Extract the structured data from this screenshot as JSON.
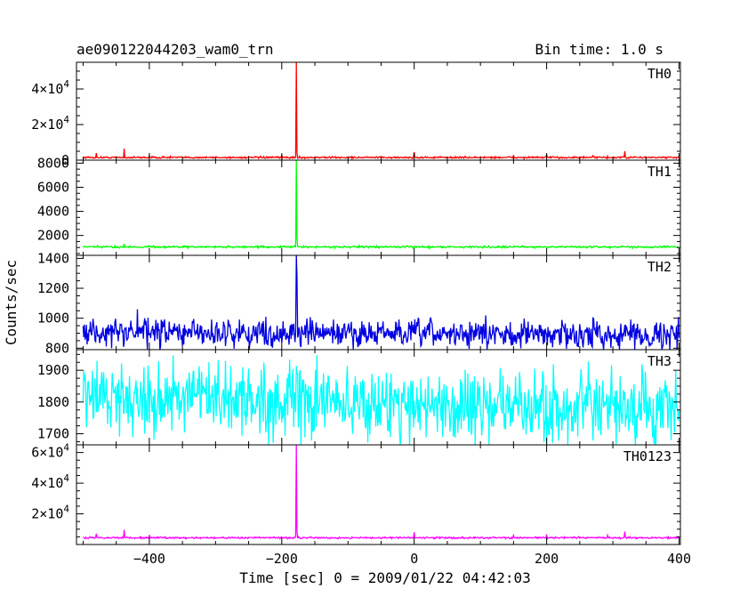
{
  "chart_data": {
    "type": "line",
    "title_left": "ae090122044203_wam0_trn",
    "title_right": "Bin time: 1.0 s",
    "xlabel": "Time [sec] 0 = 2009/01/22 04:42:03",
    "ylabel": "Counts/sec",
    "xlim": [
      -510,
      402
    ],
    "x_ticks": [
      -400,
      -200,
      0,
      200,
      400
    ],
    "x_tick_labels": [
      "−400",
      "−200",
      "0",
      "200",
      "400"
    ],
    "x_range": [
      -500,
      400
    ],
    "burst_time": -178,
    "panels": [
      {
        "name": "TH0",
        "color": "#ff0000",
        "ylim": [
          0,
          55000
        ],
        "yticks": [
          0,
          20000,
          40000
        ],
        "ytick_labels": [
          {
            "mant": "0",
            "exp": ""
          },
          {
            "mant": "2×10",
            "exp": "4"
          },
          {
            "mant": "4×10",
            "exp": "4"
          }
        ],
        "baseline": 1500,
        "noise_amp": 250,
        "trend": 0,
        "peak": 55000,
        "spikes": [
          [
            -480,
            4000
          ],
          [
            -438,
            6500
          ],
          [
            -400,
            2500
          ],
          [
            -368,
            2200
          ],
          [
            -200,
            3000
          ],
          [
            0,
            4500
          ],
          [
            62,
            2000
          ],
          [
            150,
            2500
          ],
          [
            200,
            3000
          ],
          [
            270,
            2500
          ],
          [
            292,
            2200
          ],
          [
            318,
            5000
          ]
        ]
      },
      {
        "name": "TH1",
        "color": "#00ff00",
        "ylim": [
          350,
          8250
        ],
        "yticks": [
          2000,
          4000,
          6000,
          8000
        ],
        "ytick_labels": [
          {
            "mant": "2000",
            "exp": ""
          },
          {
            "mant": "4000",
            "exp": ""
          },
          {
            "mant": "6000",
            "exp": ""
          },
          {
            "mant": "8000",
            "exp": ""
          }
        ],
        "baseline": 1050,
        "noise_amp": 40,
        "trend": 0,
        "peak": 8250,
        "spikes": [
          [
            -438,
            1300
          ],
          [
            -400,
            1150
          ]
        ]
      },
      {
        "name": "TH2",
        "color": "#0000e0",
        "ylim": [
          790,
          1420
        ],
        "yticks": [
          800,
          1000,
          1200,
          1400
        ],
        "ytick_labels": [
          {
            "mant": "800",
            "exp": ""
          },
          {
            "mant": "1000",
            "exp": ""
          },
          {
            "mant": "1200",
            "exp": ""
          },
          {
            "mant": "1400",
            "exp": ""
          }
        ],
        "baseline": 905,
        "noise_amp": 45,
        "trend": -15,
        "peak": 1420,
        "spikes": [
          [
            -418,
            1060
          ]
        ]
      },
      {
        "name": "TH3",
        "color": "#00ffff",
        "ylim": [
          1665,
          1965
        ],
        "yticks": [
          1700,
          1800,
          1900
        ],
        "ytick_labels": [
          {
            "mant": "1700",
            "exp": ""
          },
          {
            "mant": "1800",
            "exp": ""
          },
          {
            "mant": "1900",
            "exp": ""
          }
        ],
        "baseline": 1820,
        "noise_amp": 55,
        "trend": -50,
        "peak": null,
        "spikes": []
      },
      {
        "name": "TH0123",
        "color": "#ff00ff",
        "ylim": [
          0,
          65000
        ],
        "yticks": [
          20000,
          40000,
          60000
        ],
        "ytick_labels": [
          {
            "mant": "2×10",
            "exp": "4"
          },
          {
            "mant": "4×10",
            "exp": "4"
          },
          {
            "mant": "6×10",
            "exp": "4"
          }
        ],
        "baseline": 4400,
        "noise_amp": 280,
        "trend": 0,
        "peak": 65000,
        "spikes": [
          [
            -480,
            7000
          ],
          [
            -438,
            9500
          ],
          [
            -400,
            6200
          ],
          [
            0,
            8000
          ],
          [
            150,
            6000
          ],
          [
            200,
            6500
          ],
          [
            292,
            6000
          ],
          [
            318,
            8500
          ]
        ]
      }
    ]
  }
}
